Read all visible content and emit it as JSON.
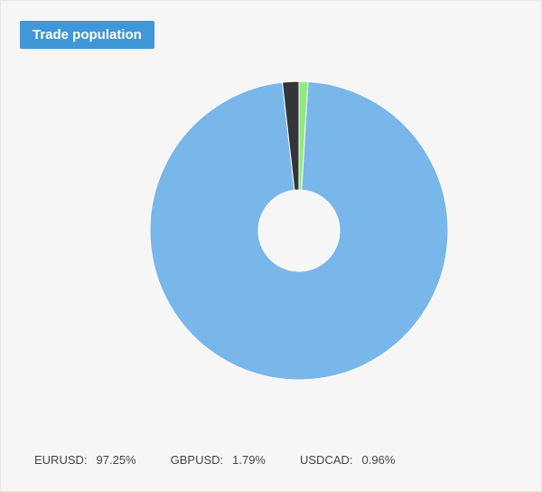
{
  "chart_data": {
    "type": "pie",
    "title": "Trade population",
    "donut": true,
    "categories": [
      "EURUSD",
      "GBPUSD",
      "USDCAD"
    ],
    "values": [
      97.25,
      1.79,
      0.96
    ],
    "value_labels": [
      "97.25%",
      "1.79%",
      "0.96%"
    ],
    "colors": [
      "#79b6ea",
      "#323539",
      "#8fea7c"
    ],
    "legend_position": "bottom-left"
  }
}
